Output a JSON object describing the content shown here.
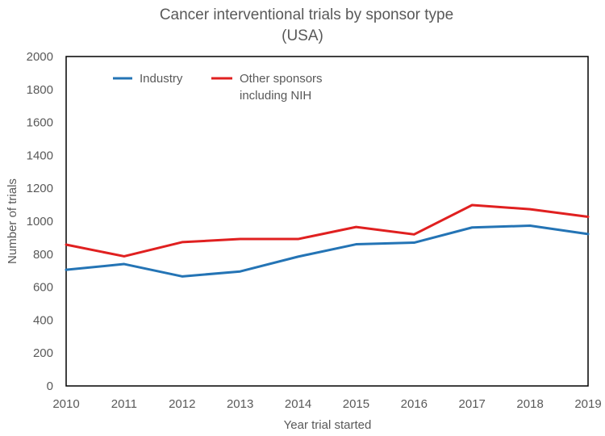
{
  "chart_data": {
    "type": "line",
    "title_line1": "Cancer interventional trials by sponsor type",
    "title_line2": "(USA)",
    "xlabel": "Year trial started",
    "ylabel": "Number of trials",
    "x": [
      2010,
      2011,
      2012,
      2013,
      2014,
      2015,
      2016,
      2017,
      2018,
      2019
    ],
    "ylim": [
      0,
      2000
    ],
    "yticks": [
      0,
      200,
      400,
      600,
      800,
      1000,
      1200,
      1400,
      1600,
      1800,
      2000
    ],
    "legend_position": "top-left",
    "grid": false,
    "series": [
      {
        "name": "Industry",
        "legend_lines": [
          "Industry"
        ],
        "color": "#2474b5",
        "values": [
          705,
          740,
          665,
          695,
          785,
          860,
          870,
          962,
          973,
          922
        ]
      },
      {
        "name": "Other sponsors including NIH",
        "legend_lines": [
          "Other sponsors",
          "including NIH"
        ],
        "color": "#e02020",
        "values": [
          858,
          787,
          873,
          892,
          892,
          965,
          920,
          1098,
          1073,
          1027
        ]
      }
    ]
  }
}
